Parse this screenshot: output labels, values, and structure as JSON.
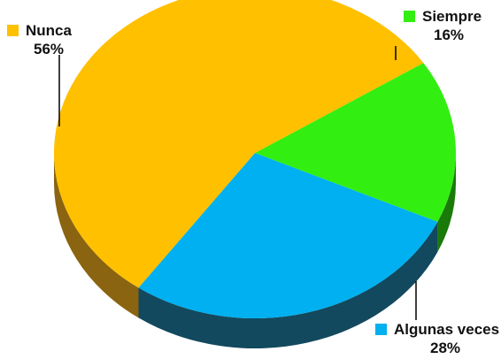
{
  "chart_data": {
    "type": "pie",
    "style": "3d",
    "title": "",
    "slices": [
      {
        "name": "Nunca",
        "value": 56,
        "label": "56%",
        "color": "#FFC000",
        "side_color": "#8A6410"
      },
      {
        "name": "Siempre",
        "value": 16,
        "label": "16%",
        "color": "#33EE11",
        "side_color": "#1A7A08"
      },
      {
        "name": "Algunas veces",
        "value": 28,
        "label": "28%",
        "color": "#00B0F0",
        "side_color": "#12495E"
      }
    ]
  }
}
